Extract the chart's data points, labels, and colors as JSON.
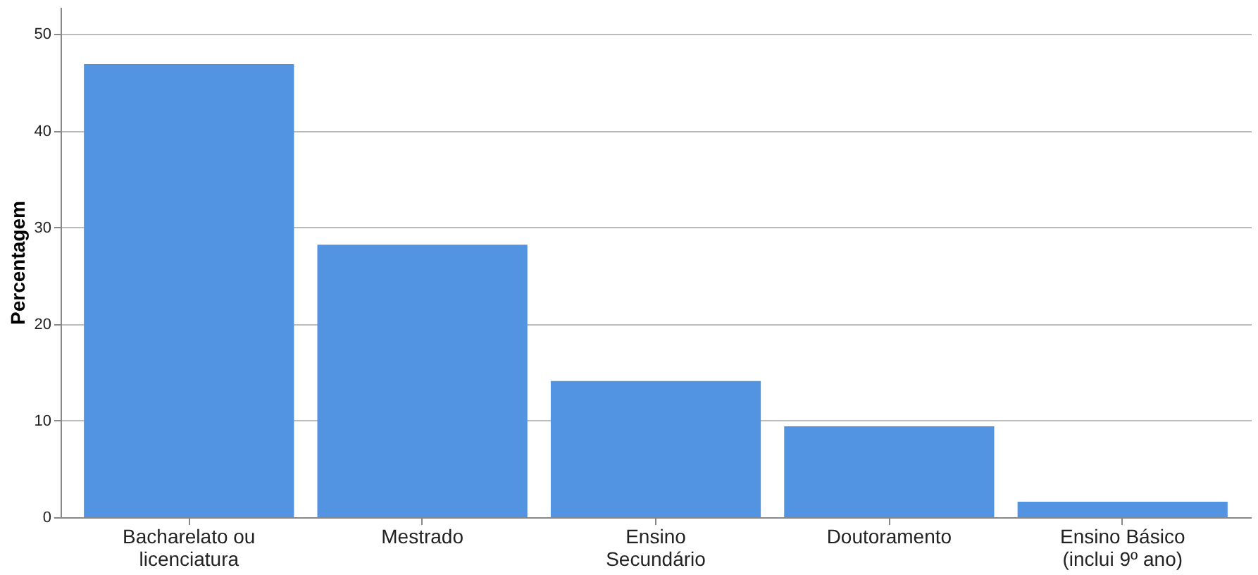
{
  "chart_data": {
    "type": "bar",
    "ylabel": "Percentagem",
    "categories": [
      "Bacharelato ou licenciatura",
      "Mestrado",
      "Ensino Secundário",
      "Doutoramento",
      "Ensino Básico (inclui 9º ano)"
    ],
    "values": [
      46.9,
      28.2,
      14.1,
      9.4,
      1.6
    ],
    "color": "#5294e2",
    "ylim": [
      0,
      52.8
    ],
    "yticks": [
      0,
      10,
      20,
      30,
      40,
      50
    ],
    "grid": "y"
  }
}
